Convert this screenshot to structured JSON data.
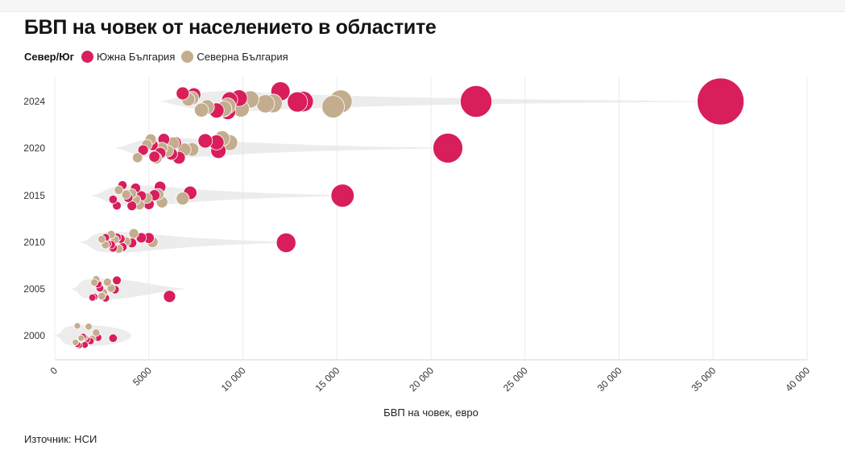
{
  "title": "БВП на човек от населението в областите",
  "legend": {
    "title": "Север/Юг",
    "items": [
      {
        "label": "Южна България",
        "color": "#d81e5b"
      },
      {
        "label": "Северна България",
        "color": "#c4ad8e"
      }
    ]
  },
  "source": "Източник: НСИ",
  "chart_data": {
    "type": "scatter",
    "title": "БВП на човек от населението в областите",
    "xlabel": "БВП на човек, евро",
    "ylabel": "",
    "xlim": [
      0,
      40000
    ],
    "x_ticks": [
      0,
      5000,
      10000,
      15000,
      20000,
      25000,
      30000,
      35000,
      40000
    ],
    "x_tick_labels": [
      "0",
      "5000",
      "10 000",
      "15 000",
      "20 000",
      "25 000",
      "30 000",
      "35 000",
      "40 000"
    ],
    "categories": [
      "2024",
      "2020",
      "2015",
      "2010",
      "2005",
      "2000"
    ],
    "grid": "vertical",
    "legend_position": "top-left",
    "series": [
      {
        "name": "Южна България",
        "color": "#d81e5b",
        "points": [
          {
            "year": "2024",
            "x": 35400
          },
          {
            "year": "2024",
            "x": 22400
          },
          {
            "year": "2024",
            "x": 13200
          },
          {
            "year": "2024",
            "x": 12900
          },
          {
            "year": "2024",
            "x": 12000
          },
          {
            "year": "2024",
            "x": 9800
          },
          {
            "year": "2024",
            "x": 9300
          },
          {
            "year": "2024",
            "x": 9000
          },
          {
            "year": "2024",
            "x": 8600
          },
          {
            "year": "2024",
            "x": 7400
          },
          {
            "year": "2024",
            "x": 6800
          },
          {
            "year": "2024",
            "x": 9200
          },
          {
            "year": "2020",
            "x": 20900
          },
          {
            "year": "2020",
            "x": 8700
          },
          {
            "year": "2020",
            "x": 8600
          },
          {
            "year": "2020",
            "x": 8000
          },
          {
            "year": "2020",
            "x": 6600
          },
          {
            "year": "2020",
            "x": 6400
          },
          {
            "year": "2020",
            "x": 6200
          },
          {
            "year": "2020",
            "x": 5800
          },
          {
            "year": "2020",
            "x": 5600
          },
          {
            "year": "2020",
            "x": 5200
          },
          {
            "year": "2020",
            "x": 4700
          },
          {
            "year": "2020",
            "x": 5300
          },
          {
            "year": "2015",
            "x": 15300
          },
          {
            "year": "2015",
            "x": 7200
          },
          {
            "year": "2015",
            "x": 5600
          },
          {
            "year": "2015",
            "x": 5300
          },
          {
            "year": "2015",
            "x": 4600
          },
          {
            "year": "2015",
            "x": 4300
          },
          {
            "year": "2015",
            "x": 3900
          },
          {
            "year": "2015",
            "x": 3600
          },
          {
            "year": "2015",
            "x": 3300
          },
          {
            "year": "2015",
            "x": 3100
          },
          {
            "year": "2015",
            "x": 4100
          },
          {
            "year": "2015",
            "x": 5000
          },
          {
            "year": "2010",
            "x": 12300
          },
          {
            "year": "2010",
            "x": 5000
          },
          {
            "year": "2010",
            "x": 4600
          },
          {
            "year": "2010",
            "x": 4100
          },
          {
            "year": "2010",
            "x": 3600
          },
          {
            "year": "2010",
            "x": 3300
          },
          {
            "year": "2010",
            "x": 3100
          },
          {
            "year": "2010",
            "x": 2800
          },
          {
            "year": "2010",
            "x": 2700
          },
          {
            "year": "2010",
            "x": 3500
          },
          {
            "year": "2010",
            "x": 3000
          },
          {
            "year": "2005",
            "x": 6100
          },
          {
            "year": "2005",
            "x": 3300
          },
          {
            "year": "2005",
            "x": 3200
          },
          {
            "year": "2005",
            "x": 2700
          },
          {
            "year": "2005",
            "x": 2500
          },
          {
            "year": "2005",
            "x": 2300
          },
          {
            "year": "2005",
            "x": 2100
          },
          {
            "year": "2005",
            "x": 2000
          },
          {
            "year": "2005",
            "x": 2400
          },
          {
            "year": "2000",
            "x": 3100
          },
          {
            "year": "2000",
            "x": 2300
          },
          {
            "year": "2000",
            "x": 1900
          },
          {
            "year": "2000",
            "x": 1700
          },
          {
            "year": "2000",
            "x": 1500
          },
          {
            "year": "2000",
            "x": 1300
          },
          {
            "year": "2000",
            "x": 1200
          },
          {
            "year": "2000",
            "x": 1400
          },
          {
            "year": "2000",
            "x": 1600
          }
        ]
      },
      {
        "name": "Северна България",
        "color": "#c4ad8e",
        "points": [
          {
            "year": "2024",
            "x": 15200
          },
          {
            "year": "2024",
            "x": 14800
          },
          {
            "year": "2024",
            "x": 11600
          },
          {
            "year": "2024",
            "x": 11200
          },
          {
            "year": "2024",
            "x": 10400
          },
          {
            "year": "2024",
            "x": 9900
          },
          {
            "year": "2024",
            "x": 9200
          },
          {
            "year": "2024",
            "x": 9000
          },
          {
            "year": "2024",
            "x": 8100
          },
          {
            "year": "2024",
            "x": 7800
          },
          {
            "year": "2024",
            "x": 7300
          },
          {
            "year": "2024",
            "x": 7100
          },
          {
            "year": "2020",
            "x": 9300
          },
          {
            "year": "2020",
            "x": 8900
          },
          {
            "year": "2020",
            "x": 7300
          },
          {
            "year": "2020",
            "x": 6900
          },
          {
            "year": "2020",
            "x": 6300
          },
          {
            "year": "2020",
            "x": 6000
          },
          {
            "year": "2020",
            "x": 5400
          },
          {
            "year": "2020",
            "x": 5100
          },
          {
            "year": "2020",
            "x": 4900
          },
          {
            "year": "2020",
            "x": 4400
          },
          {
            "year": "2020",
            "x": 5700
          },
          {
            "year": "2015",
            "x": 6800
          },
          {
            "year": "2015",
            "x": 5700
          },
          {
            "year": "2015",
            "x": 5500
          },
          {
            "year": "2015",
            "x": 4900
          },
          {
            "year": "2015",
            "x": 4500
          },
          {
            "year": "2015",
            "x": 4100
          },
          {
            "year": "2015",
            "x": 3800
          },
          {
            "year": "2015",
            "x": 3400
          },
          {
            "year": "2015",
            "x": 4300
          },
          {
            "year": "2010",
            "x": 5200
          },
          {
            "year": "2010",
            "x": 4200
          },
          {
            "year": "2010",
            "x": 3800
          },
          {
            "year": "2010",
            "x": 3400
          },
          {
            "year": "2010",
            "x": 3000
          },
          {
            "year": "2010",
            "x": 2700
          },
          {
            "year": "2010",
            "x": 2500
          },
          {
            "year": "2010",
            "x": 3200
          },
          {
            "year": "2005",
            "x": 3000
          },
          {
            "year": "2005",
            "x": 2800
          },
          {
            "year": "2005",
            "x": 2600
          },
          {
            "year": "2005",
            "x": 2200
          },
          {
            "year": "2005",
            "x": 2100
          },
          {
            "year": "2005",
            "x": 2500
          },
          {
            "year": "2000",
            "x": 2200
          },
          {
            "year": "2000",
            "x": 2000
          },
          {
            "year": "2000",
            "x": 1800
          },
          {
            "year": "2000",
            "x": 1600
          },
          {
            "year": "2000",
            "x": 1200
          },
          {
            "year": "2000",
            "x": 1100
          },
          {
            "year": "2000",
            "x": 1400
          }
        ]
      }
    ]
  }
}
